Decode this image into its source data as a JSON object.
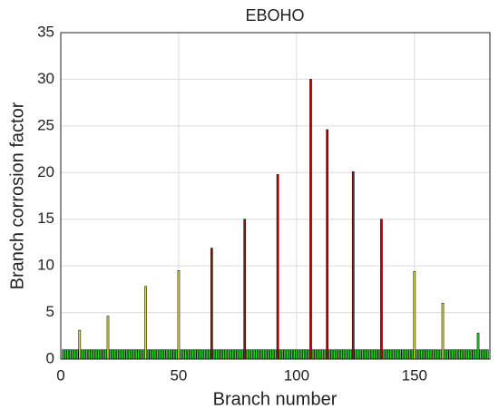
{
  "chart_data": {
    "type": "bar",
    "title": "EBOHO",
    "x_label": "Branch number",
    "y_label": "Branch corrosion factor",
    "xlim": [
      0,
      182
    ],
    "ylim": [
      0,
      35
    ],
    "xticks": [
      0,
      50,
      100,
      150
    ],
    "yticks": [
      0,
      5,
      10,
      15,
      20,
      25,
      30,
      35
    ],
    "grid": true,
    "series": [
      {
        "color": "#22dd22",
        "x": [
          1,
          2,
          3,
          4,
          5,
          6,
          7,
          9,
          10,
          11,
          12,
          13,
          14,
          15,
          16,
          17,
          18,
          19,
          21,
          22,
          23,
          24,
          25,
          26,
          27,
          28,
          29,
          30,
          31,
          32,
          33,
          34,
          35,
          37,
          38,
          39,
          40,
          41,
          42,
          43,
          44,
          45,
          46,
          47,
          48,
          49,
          51,
          52,
          53,
          54,
          55,
          56,
          57,
          58,
          59,
          60,
          61,
          62,
          63,
          65,
          66,
          67,
          68,
          69,
          70,
          71,
          72,
          73,
          74,
          75,
          76,
          77,
          79,
          80,
          81,
          82,
          83,
          84,
          85,
          86,
          87,
          88,
          89,
          90,
          91,
          93,
          94,
          95,
          96,
          97,
          98,
          99,
          100,
          101,
          102,
          103,
          104,
          105,
          107,
          108,
          109,
          110,
          111,
          112,
          114,
          115,
          116,
          117,
          118,
          119,
          120,
          121,
          122,
          123,
          125,
          126,
          127,
          128,
          129,
          130,
          131,
          132,
          133,
          134,
          135,
          137,
          138,
          139,
          140,
          141,
          142,
          143,
          144,
          145,
          146,
          147,
          148,
          149,
          151,
          152,
          153,
          154,
          155,
          156,
          157,
          158,
          159,
          160,
          161,
          163,
          164,
          165,
          166,
          167,
          168,
          169,
          170,
          171,
          172,
          173,
          174,
          175,
          176,
          177,
          178,
          179,
          180,
          181
        ],
        "values": [
          1,
          1,
          1,
          1,
          1,
          1,
          1,
          1,
          1,
          1,
          1,
          1,
          1,
          1,
          1,
          1,
          1,
          1,
          1,
          1,
          1,
          1,
          1,
          1,
          1,
          1,
          1,
          1,
          1,
          1,
          1,
          1,
          1,
          1,
          1,
          1,
          1,
          1,
          1,
          1,
          1,
          1,
          1,
          1,
          1,
          1,
          1,
          1,
          1,
          1,
          1,
          1,
          1,
          1,
          1,
          1,
          1,
          1,
          1,
          1,
          1,
          1,
          1,
          1,
          1,
          1,
          1,
          1,
          1,
          1,
          1,
          1,
          1,
          1,
          1,
          1,
          1,
          1,
          1,
          1,
          1,
          1,
          1,
          1,
          1,
          1,
          1,
          1,
          1,
          1,
          1,
          1,
          1,
          1,
          1,
          1,
          1,
          1,
          1,
          1,
          1,
          1,
          1,
          1,
          1,
          1,
          1,
          1,
          1,
          1,
          1,
          1,
          1,
          1,
          1,
          1,
          1,
          1,
          1,
          1,
          1,
          1,
          1,
          1,
          1,
          1,
          1,
          1,
          1,
          1,
          1,
          1,
          1,
          1,
          1,
          1,
          1,
          1,
          1,
          1,
          1,
          1,
          1,
          1,
          1,
          1,
          1,
          1,
          1,
          1,
          1,
          1,
          1,
          1,
          1,
          1,
          1,
          1,
          1,
          1,
          1,
          1,
          1,
          2.8,
          1,
          1,
          1,
          1
        ]
      },
      {
        "color": "#e0e040",
        "x": [
          8,
          20,
          36,
          50,
          150,
          162
        ],
        "values": [
          3.1,
          4.6,
          7.8,
          9.5,
          9.4,
          6.0
        ]
      },
      {
        "color": "#c00000",
        "x": [
          64,
          78,
          92,
          106,
          113,
          124,
          136
        ],
        "values": [
          11.9,
          15.0,
          19.8,
          30.0,
          24.6,
          20.1,
          15.0
        ]
      }
    ]
  }
}
